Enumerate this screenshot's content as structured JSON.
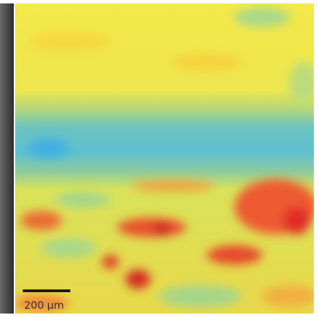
{
  "scale_bar": {
    "label": "200 µm"
  }
}
